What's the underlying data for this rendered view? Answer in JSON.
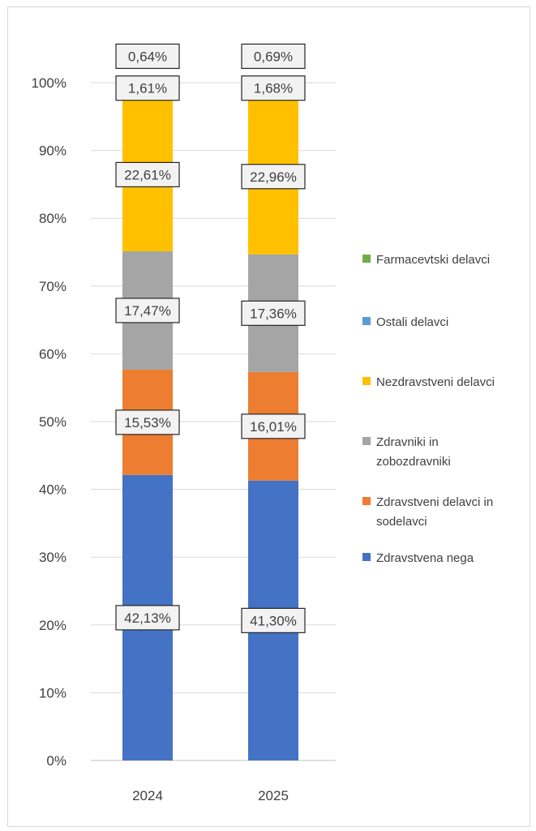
{
  "chart_data": {
    "type": "bar",
    "stacked": true,
    "categories": [
      "2024",
      "2025"
    ],
    "y_ticks": [
      "0%",
      "10%",
      "20%",
      "30%",
      "40%",
      "50%",
      "60%",
      "70%",
      "80%",
      "90%",
      "100%"
    ],
    "ylim": [
      0,
      100
    ],
    "grid": true,
    "legend_position": "right",
    "series": [
      {
        "name": "Zdravstvena nega",
        "color": "#4472c4",
        "values": [
          42.13,
          41.3
        ],
        "labels": [
          "42,13%",
          "41,30%"
        ]
      },
      {
        "name": "Zdravstveni delavci in sodelavci",
        "color": "#ed7d31",
        "values": [
          15.53,
          16.01
        ],
        "labels": [
          "15,53%",
          "16,01%"
        ]
      },
      {
        "name": "Zdravniki in zobozdravniki",
        "color": "#a5a5a5",
        "values": [
          17.47,
          17.36
        ],
        "labels": [
          "17,47%",
          "17,36%"
        ]
      },
      {
        "name": "Nezdravstveni delavci",
        "color": "#ffc000",
        "values": [
          22.61,
          22.96
        ],
        "labels": [
          "22,61%",
          "22,96%"
        ]
      },
      {
        "name": "Ostali delavci",
        "color": "#5b9bd5",
        "values": [
          1.61,
          1.68
        ],
        "labels": [
          "1,61%",
          "1,68%"
        ]
      },
      {
        "name": "Farmacevtski delavci",
        "color": "#70ad47",
        "values": [
          0.64,
          0.69
        ],
        "labels": [
          "0,64%",
          "0,69%"
        ]
      }
    ],
    "legend_order": [
      "Farmacevtski delavci",
      "Ostali delavci",
      "Nezdravstveni delavci",
      "Zdravniki in zobozdravniki",
      "Zdravstveni delavci in sodelavci",
      "Zdravstvena nega"
    ]
  }
}
